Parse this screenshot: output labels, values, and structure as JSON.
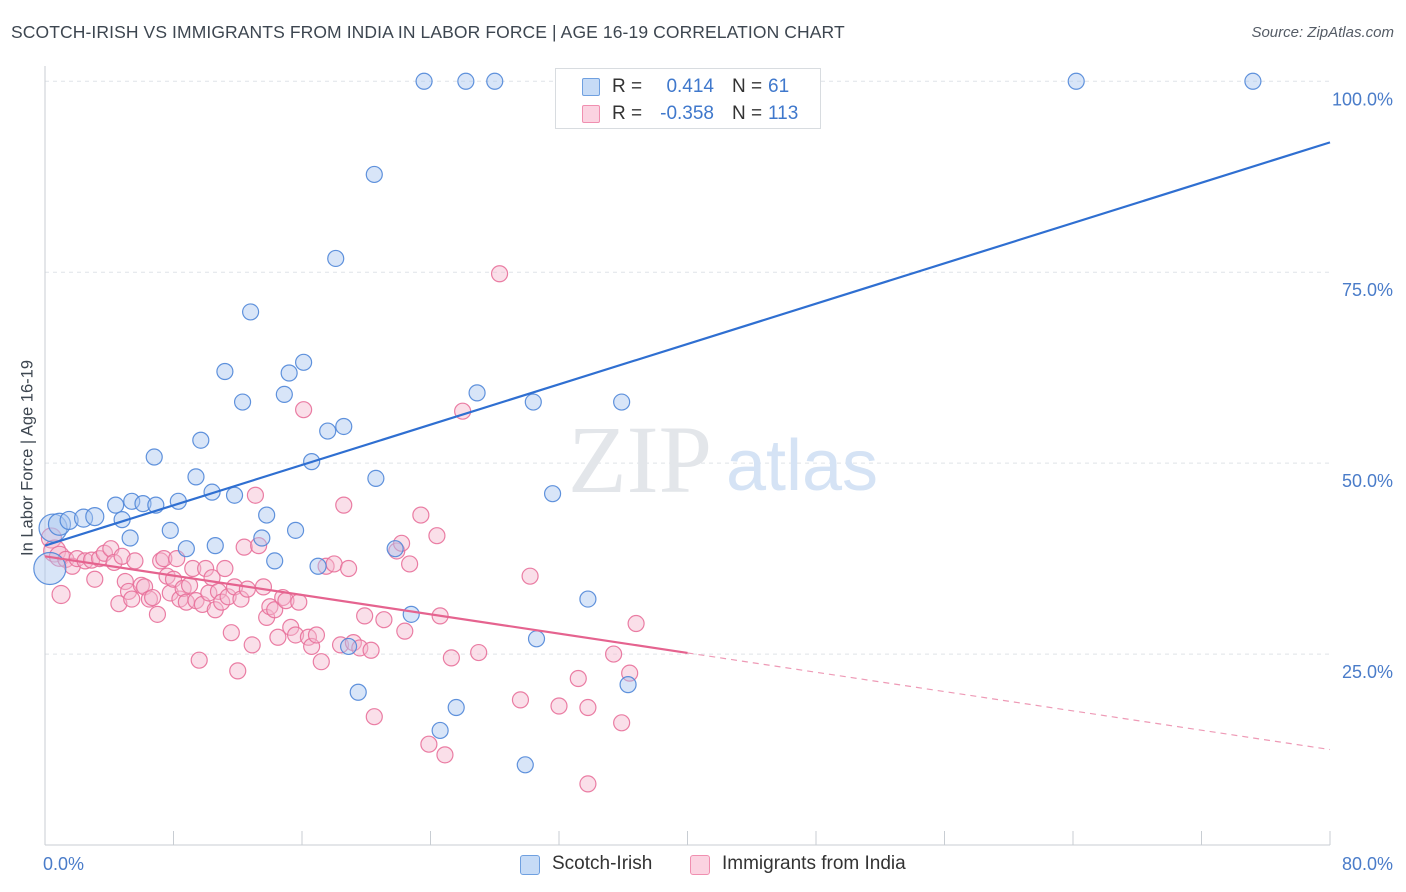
{
  "title": "SCOTCH-IRISH VS IMMIGRANTS FROM INDIA IN LABOR FORCE | AGE 16-19 CORRELATION CHART",
  "source": "Source: ZipAtlas.com",
  "watermark": {
    "zip": "ZIP",
    "atlas": "atlas"
  },
  "legend_top": {
    "rows": [
      {
        "r_label": "R =",
        "r_value": "0.414",
        "n_label": "N =",
        "n_value": "61",
        "color": "#6fa0e0"
      },
      {
        "r_label": "R =",
        "r_value": "-0.358",
        "n_label": "N =",
        "n_value": "113",
        "color": "#f08fb0"
      }
    ]
  },
  "legend_bottom": [
    {
      "label": "Scotch-Irish",
      "color": "#6fa0e0"
    },
    {
      "label": "Immigrants from India",
      "color": "#f08fb0"
    }
  ],
  "colors": {
    "blue": "#4f86d8",
    "blue_fill": "#a9c6f0",
    "pink": "#e8709a",
    "pink_fill": "#f5b9cf",
    "tick_text": "#4a7cc9"
  },
  "chart_data": {
    "type": "scatter",
    "title": "SCOTCH-IRISH VS IMMIGRANTS FROM INDIA IN LABOR FORCE | AGE 16-19 CORRELATION CHART",
    "xlabel": "",
    "ylabel": "In Labor Force | Age 16-19",
    "xlim": [
      0,
      80
    ],
    "ylim": [
      0,
      102
    ],
    "x_tick_labels": [
      "0.0%",
      "80.0%"
    ],
    "y_ticks": [
      25,
      50,
      75,
      100
    ],
    "y_tick_labels": [
      "25.0%",
      "50.0%",
      "75.0%",
      "100.0%"
    ],
    "grid": "horizontal dashed",
    "legend": "bottom-center",
    "series": [
      {
        "name": "Scotch-Irish",
        "r": 0.414,
        "n": 61,
        "trend": {
          "x": [
            0,
            80
          ],
          "y": [
            39.2,
            92.0
          ],
          "dashed_from_x": null
        },
        "points": [
          [
            0.3,
            36.2,
            16
          ],
          [
            0.5,
            41.5,
            14
          ],
          [
            0.9,
            42.0,
            11
          ],
          [
            1.5,
            42.5,
            9
          ],
          [
            2.4,
            42.8,
            9
          ],
          [
            3.1,
            43.0,
            9
          ],
          [
            4.4,
            44.5,
            8
          ],
          [
            4.8,
            42.6,
            8
          ],
          [
            5.4,
            45.0,
            8
          ],
          [
            5.3,
            40.2,
            8
          ],
          [
            6.1,
            44.7,
            8
          ],
          [
            6.8,
            50.8,
            8
          ],
          [
            6.9,
            44.5,
            8
          ],
          [
            7.8,
            41.2,
            8
          ],
          [
            8.3,
            45.0,
            8
          ],
          [
            8.8,
            38.8,
            8
          ],
          [
            9.4,
            48.2,
            8
          ],
          [
            9.7,
            53.0,
            8
          ],
          [
            10.4,
            46.2,
            8
          ],
          [
            10.6,
            39.2,
            8
          ],
          [
            11.2,
            62.0,
            8
          ],
          [
            11.8,
            45.8,
            8
          ],
          [
            12.3,
            58.0,
            8
          ],
          [
            12.8,
            69.8,
            8
          ],
          [
            13.5,
            40.2,
            8
          ],
          [
            13.8,
            43.2,
            8
          ],
          [
            14.3,
            37.2,
            8
          ],
          [
            14.9,
            59.0,
            8
          ],
          [
            15.2,
            61.8,
            8
          ],
          [
            15.6,
            41.2,
            8
          ],
          [
            16.1,
            63.2,
            8
          ],
          [
            16.6,
            50.2,
            8
          ],
          [
            17.0,
            36.5,
            8
          ],
          [
            17.6,
            54.2,
            8
          ],
          [
            18.1,
            76.8,
            8
          ],
          [
            18.6,
            54.8,
            8
          ],
          [
            18.9,
            26.0,
            8
          ],
          [
            19.5,
            20.0,
            8
          ],
          [
            20.5,
            87.8,
            8
          ],
          [
            20.6,
            48.0,
            8
          ],
          [
            21.8,
            38.8,
            8
          ],
          [
            22.8,
            30.2,
            8
          ],
          [
            23.6,
            100.0,
            8
          ],
          [
            24.6,
            15.0,
            8
          ],
          [
            25.6,
            18.0,
            8
          ],
          [
            26.2,
            100.0,
            8
          ],
          [
            26.9,
            59.2,
            8
          ],
          [
            28.0,
            100.0,
            8
          ],
          [
            29.9,
            10.5,
            8
          ],
          [
            30.4,
            58.0,
            8
          ],
          [
            30.6,
            27.0,
            8
          ],
          [
            31.6,
            46.0,
            8
          ],
          [
            32.8,
            100.0,
            8
          ],
          [
            33.8,
            32.2,
            8
          ],
          [
            35.9,
            58.0,
            8
          ],
          [
            36.3,
            21.0,
            8
          ],
          [
            64.2,
            100.0,
            8
          ],
          [
            75.2,
            100.0,
            8
          ]
        ]
      },
      {
        "name": "Immigrants from India",
        "r": -0.358,
        "n": 113,
        "trend": {
          "x": [
            0,
            80
          ],
          "y": [
            37.8,
            12.5
          ],
          "dashed_from_x": 40
        },
        "points": [
          [
            0.4,
            40.2,
            10
          ],
          [
            0.6,
            38.5,
            11
          ],
          [
            0.9,
            37.8,
            10
          ],
          [
            1.0,
            32.8,
            9
          ],
          [
            1.3,
            37.4,
            8
          ],
          [
            1.7,
            36.5,
            8
          ],
          [
            2.0,
            37.5,
            8
          ],
          [
            2.5,
            37.2,
            8
          ],
          [
            2.9,
            37.3,
            8
          ],
          [
            3.1,
            34.8,
            8
          ],
          [
            3.4,
            37.5,
            8
          ],
          [
            3.7,
            38.2,
            8
          ],
          [
            4.1,
            38.8,
            8
          ],
          [
            4.3,
            37.0,
            8
          ],
          [
            4.6,
            31.6,
            8
          ],
          [
            4.8,
            37.8,
            8
          ],
          [
            5.0,
            34.5,
            8
          ],
          [
            5.2,
            33.2,
            8
          ],
          [
            5.4,
            32.2,
            8
          ],
          [
            5.6,
            37.2,
            8
          ],
          [
            6.0,
            34.0,
            8
          ],
          [
            6.2,
            33.8,
            8
          ],
          [
            6.5,
            32.2,
            8
          ],
          [
            6.7,
            32.4,
            8
          ],
          [
            7.0,
            30.2,
            8
          ],
          [
            7.2,
            37.2,
            8
          ],
          [
            7.4,
            37.5,
            8
          ],
          [
            7.6,
            35.2,
            8
          ],
          [
            7.8,
            33.0,
            8
          ],
          [
            8.0,
            34.8,
            8
          ],
          [
            8.2,
            37.5,
            8
          ],
          [
            8.4,
            32.2,
            8
          ],
          [
            8.6,
            33.6,
            8
          ],
          [
            8.8,
            31.8,
            8
          ],
          [
            9.0,
            34.0,
            8
          ],
          [
            9.2,
            36.2,
            8
          ],
          [
            9.4,
            32.0,
            8
          ],
          [
            9.6,
            24.2,
            8
          ],
          [
            9.8,
            31.5,
            8
          ],
          [
            10.0,
            36.2,
            8
          ],
          [
            10.2,
            33.0,
            8
          ],
          [
            10.4,
            35.0,
            8
          ],
          [
            10.6,
            30.8,
            8
          ],
          [
            10.8,
            33.2,
            8
          ],
          [
            11.0,
            31.8,
            8
          ],
          [
            11.2,
            36.2,
            8
          ],
          [
            11.4,
            32.5,
            8
          ],
          [
            11.6,
            27.8,
            8
          ],
          [
            11.8,
            33.8,
            8
          ],
          [
            12.0,
            22.8,
            8
          ],
          [
            12.2,
            32.2,
            8
          ],
          [
            12.4,
            39.0,
            8
          ],
          [
            12.6,
            33.5,
            8
          ],
          [
            12.9,
            26.2,
            8
          ],
          [
            13.1,
            45.8,
            8
          ],
          [
            13.3,
            39.2,
            8
          ],
          [
            13.6,
            33.8,
            8
          ],
          [
            13.8,
            29.8,
            8
          ],
          [
            14.0,
            31.2,
            8
          ],
          [
            14.3,
            30.8,
            8
          ],
          [
            14.5,
            27.2,
            8
          ],
          [
            14.8,
            32.4,
            8
          ],
          [
            15.0,
            32.0,
            8
          ],
          [
            15.3,
            28.5,
            8
          ],
          [
            15.6,
            27.5,
            8
          ],
          [
            15.8,
            31.8,
            8
          ],
          [
            16.1,
            57.0,
            8
          ],
          [
            16.4,
            27.2,
            8
          ],
          [
            16.6,
            26.0,
            8
          ],
          [
            16.9,
            27.5,
            8
          ],
          [
            17.2,
            24.0,
            8
          ],
          [
            17.5,
            36.5,
            8
          ],
          [
            18.0,
            36.8,
            8
          ],
          [
            18.4,
            26.2,
            8
          ],
          [
            18.6,
            44.5,
            8
          ],
          [
            18.9,
            36.2,
            8
          ],
          [
            19.2,
            26.5,
            8
          ],
          [
            19.6,
            25.8,
            8
          ],
          [
            19.9,
            30.0,
            8
          ],
          [
            20.3,
            25.5,
            8
          ],
          [
            20.5,
            16.8,
            8
          ],
          [
            21.1,
            29.5,
            8
          ],
          [
            21.9,
            38.5,
            8
          ],
          [
            22.2,
            39.5,
            8
          ],
          [
            22.4,
            28.0,
            8
          ],
          [
            22.7,
            36.8,
            8
          ],
          [
            23.4,
            43.2,
            8
          ],
          [
            23.9,
            13.2,
            8
          ],
          [
            24.4,
            40.5,
            8
          ],
          [
            24.6,
            30.0,
            8
          ],
          [
            24.9,
            11.8,
            8
          ],
          [
            25.3,
            24.5,
            8
          ],
          [
            26.0,
            56.8,
            8
          ],
          [
            27.0,
            25.2,
            8
          ],
          [
            28.3,
            74.8,
            8
          ],
          [
            29.6,
            19.0,
            8
          ],
          [
            30.2,
            35.2,
            8
          ],
          [
            32.0,
            18.2,
            8
          ],
          [
            33.2,
            21.8,
            8
          ],
          [
            33.8,
            18.0,
            8
          ],
          [
            33.8,
            8.0,
            8
          ],
          [
            35.4,
            25.0,
            8
          ],
          [
            35.9,
            16.0,
            8
          ],
          [
            36.4,
            22.5,
            8
          ],
          [
            36.8,
            29.0,
            8
          ]
        ]
      }
    ]
  }
}
